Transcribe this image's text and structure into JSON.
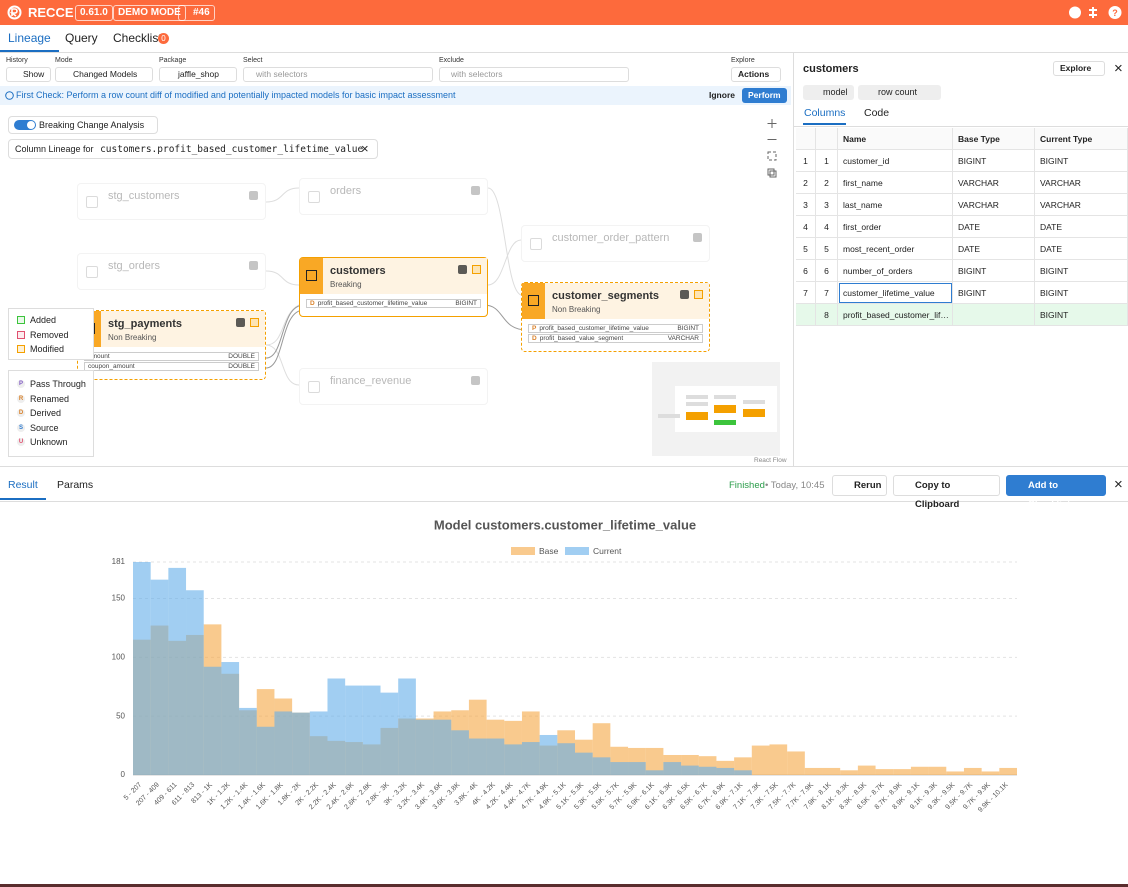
{
  "header": {
    "brand": "RECCE",
    "version": "0.61.0",
    "mode": "DEMO MODE",
    "pr": "#46"
  },
  "tabs": {
    "items": [
      "Lineage",
      "Query",
      "Checklist"
    ],
    "checklist_count": 0
  },
  "toolbar": {
    "history_label": "History",
    "history_button": "Show",
    "mode_label": "Mode",
    "mode_value": "Changed Models",
    "package_label": "Package",
    "package_value": "jaffle_shop",
    "select_label": "Select",
    "select_placeholder": "with selectors",
    "exclude_label": "Exclude",
    "exclude_placeholder": "with selectors",
    "explore_label": "Explore",
    "explore_button": "Actions"
  },
  "notice": {
    "text": "First Check: Perform a row count diff of modified and potentially impacted models for basic impact assessment",
    "ignore": "Ignore",
    "perform": "Perform"
  },
  "lineage": {
    "breaking_toggle": "Breaking Change Analysis",
    "column_lineage_label": "Column Lineage for",
    "column_lineage_target": "customers.profit_based_customer_lifetime_value",
    "nodes": [
      {
        "name": "stg_customers"
      },
      {
        "name": "orders"
      },
      {
        "name": "stg_orders"
      },
      {
        "name": "customer_order_pattern"
      },
      {
        "name": "customers",
        "change": "Breaking",
        "columns": [
          {
            "badge": "D",
            "name": "profit_based_customer_lifetime_value",
            "type": "BIGINT"
          }
        ]
      },
      {
        "name": "stg_payments",
        "change": "Non Breaking",
        "columns": [
          {
            "name": "amount",
            "type": "DOUBLE"
          },
          {
            "name": "coupon_amount",
            "type": "DOUBLE"
          }
        ]
      },
      {
        "name": "customer_segments",
        "change": "Non Breaking",
        "columns": [
          {
            "badge": "P",
            "name": "profit_based_customer_lifetime_value",
            "type": "BIGINT"
          },
          {
            "badge": "D",
            "name": "profit_based_value_segment",
            "type": "VARCHAR"
          }
        ]
      },
      {
        "name": "finance_revenue"
      }
    ],
    "legend_change": [
      "Added",
      "Removed",
      "Modified"
    ],
    "legend_transform": [
      {
        "badge": "P",
        "label": "Pass Through"
      },
      {
        "badge": "R",
        "label": "Renamed"
      },
      {
        "badge": "D",
        "label": "Derived"
      },
      {
        "badge": "S",
        "label": "Source"
      },
      {
        "badge": "U",
        "label": "Unknown"
      }
    ],
    "attribution": "React Flow"
  },
  "details": {
    "title": "customers",
    "explore": "Explore",
    "badges": [
      "model",
      "row count"
    ],
    "tabs": [
      "Columns",
      "Code"
    ],
    "columns": [
      "Name",
      "Base Type",
      "Current Type"
    ],
    "rows": [
      [
        1,
        1,
        "customer_id",
        "BIGINT",
        "BIGINT"
      ],
      [
        2,
        2,
        "first_name",
        "VARCHAR",
        "VARCHAR"
      ],
      [
        3,
        3,
        "last_name",
        "VARCHAR",
        "VARCHAR"
      ],
      [
        4,
        4,
        "first_order",
        "DATE",
        "DATE"
      ],
      [
        5,
        5,
        "most_recent_order",
        "DATE",
        "DATE"
      ],
      [
        6,
        6,
        "number_of_orders",
        "BIGINT",
        "BIGINT"
      ],
      [
        7,
        7,
        "customer_lifetime_value",
        "BIGINT",
        "BIGINT"
      ],
      [
        null,
        8,
        "profit_based_customer_lifetime_value",
        null,
        "BIGINT"
      ]
    ]
  },
  "result": {
    "tabs": [
      "Result",
      "Params"
    ],
    "status": "Finished",
    "time": "Today, 10:45",
    "rerun": "Rerun",
    "copy": "Copy to Clipboard",
    "add": "Add to Checklist"
  },
  "chart_data": {
    "type": "bar",
    "title": "Model customers.customer_lifetime_value",
    "categories": [
      "5 - 207",
      "207 - 409",
      "409 - 611",
      "611 - 813",
      "813 - 1K",
      "1K - 1.2K",
      "1.2K - 1.4K",
      "1.4K - 1.6K",
      "1.6K - 1.8K",
      "1.8K - 2K",
      "2K - 2.2K",
      "2.2K - 2.4K",
      "2.4K - 2.6K",
      "2.6K - 2.8K",
      "2.8K - 3K",
      "3K - 3.2K",
      "3.2K - 3.4K",
      "3.4K - 3.6K",
      "3.6K - 3.8K",
      "3.8K - 4K",
      "4K - 4.2K",
      "4.2K - 4.4K",
      "4.4K - 4.7K",
      "4.7K - 4.9K",
      "4.9K - 5.1K",
      "5.1K - 5.3K",
      "5.3K - 5.5K",
      "5.5K - 5.7K",
      "5.7K - 5.9K",
      "5.9K - 6.1K",
      "6.1K - 6.3K",
      "6.3K - 6.5K",
      "6.5K - 6.7K",
      "6.7K - 6.9K",
      "6.9K - 7.1K",
      "7.1K - 7.3K",
      "7.3K - 7.5K",
      "7.5K - 7.7K",
      "7.7K - 7.9K",
      "7.9K - 8.1K",
      "8.1K - 8.3K",
      "8.3K - 8.5K",
      "8.5K - 8.7K",
      "8.7K - 8.9K",
      "8.9K - 9.1K",
      "9.1K - 9.3K",
      "9.3K - 9.5K",
      "9.5K - 9.7K",
      "9.7K - 9.9K",
      "9.9K - 10.1K"
    ],
    "series": [
      {
        "name": "Base",
        "color": "#f5a742",
        "values": [
          115,
          127,
          114,
          119,
          128,
          86,
          55,
          73,
          65,
          53,
          33,
          29,
          28,
          26,
          40,
          48,
          48,
          54,
          55,
          64,
          47,
          46,
          54,
          25,
          38,
          30,
          44,
          24,
          23,
          23,
          17,
          17,
          16,
          12,
          15,
          25,
          26,
          20,
          6,
          6,
          4,
          8,
          5,
          5,
          7,
          7,
          3,
          6,
          3,
          6
        ]
      },
      {
        "name": "Current",
        "color": "#63aee9",
        "values": [
          181,
          166,
          176,
          157,
          92,
          96,
          57,
          41,
          54,
          53,
          54,
          82,
          76,
          76,
          70,
          82,
          47,
          47,
          38,
          31,
          31,
          26,
          28,
          34,
          27,
          19,
          15,
          11,
          11,
          4,
          11,
          8,
          7,
          6,
          4,
          0,
          0,
          0,
          0,
          0,
          0,
          0,
          0,
          0,
          0,
          0,
          0,
          0,
          0,
          0
        ]
      }
    ],
    "ylim": [
      0,
      181
    ],
    "yticks": [
      0,
      50,
      100,
      150,
      181
    ],
    "grid": true
  }
}
